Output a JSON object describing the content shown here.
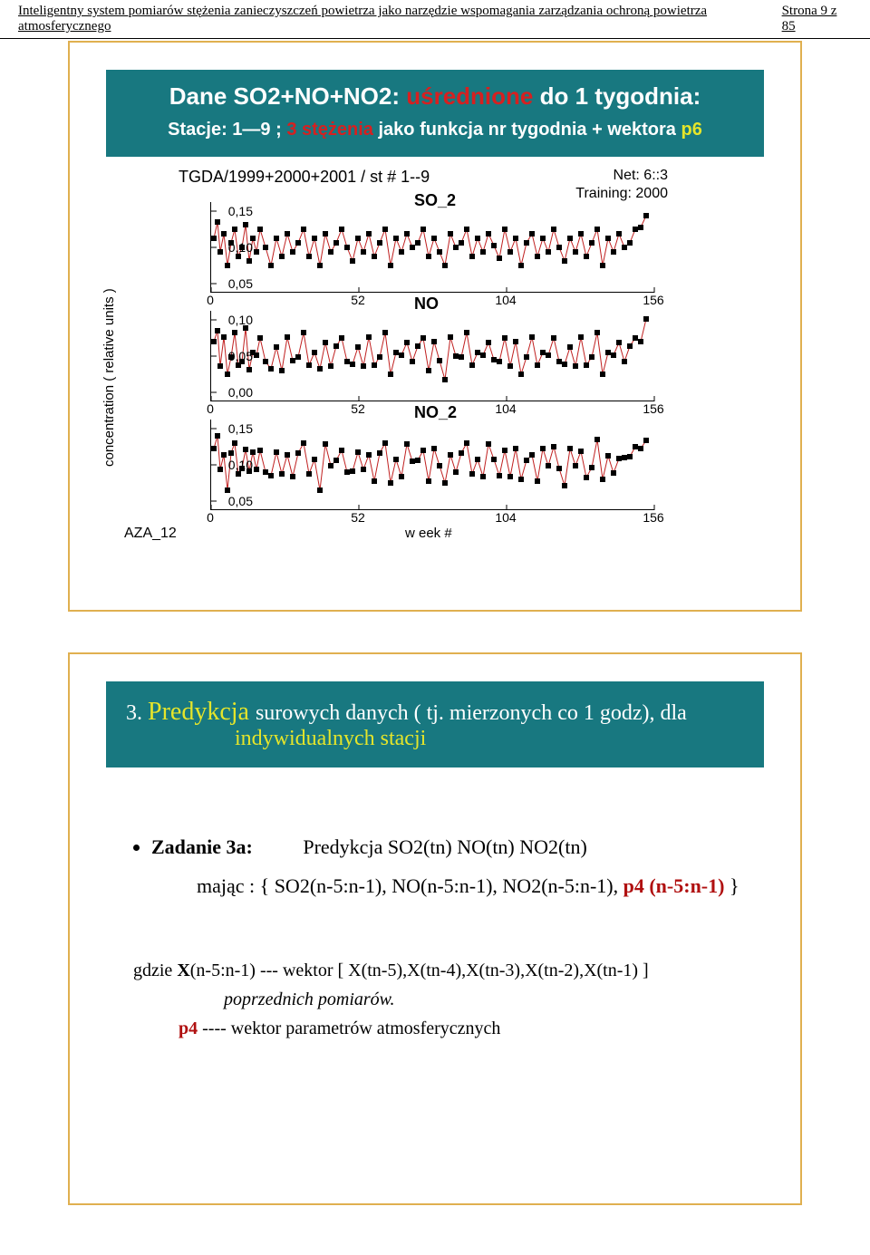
{
  "header": {
    "title": "Inteligentny system pomiarów stężenia zanieczyszczeń powietrza jako narzędzie wspomagania zarządzania ochroną powietrza atmosferycznego",
    "page": "Strona 9 z 85"
  },
  "slide1": {
    "title_white": "Dane SO2+NO+NO2: ",
    "title_red": "uśrednione",
    "title_white2": " do 1 tygodnia:",
    "sub_white1": "Stacje: 1—9  ; ",
    "sub_red": "3 stężenia ",
    "sub_white2": " jako funkcja nr tygodnia + wektora ",
    "sub_yel": "p6",
    "chart_title": "TGDA/1999+2000+2001 / st # 1--9",
    "net": "Net: 6::3",
    "train": "Training: 2000",
    "ylabel": "concentration ( relative units )",
    "xlabel": "w eek #",
    "bottom_left": "AZA_12",
    "panels": [
      {
        "label": "SO_2",
        "yticks": [
          "0,15",
          "0,10",
          "0,05"
        ],
        "xticks": [
          "0",
          "52",
          "104",
          "156"
        ]
      },
      {
        "label": "NO",
        "yticks": [
          "0,10",
          "0,05",
          "0,00"
        ],
        "xticks": [
          "0",
          "52",
          "104",
          "156"
        ]
      },
      {
        "label": "NO_2",
        "yticks": [
          "0,15",
          "0,10",
          "0,05"
        ],
        "xticks": [
          "0",
          "52",
          "104",
          "156"
        ]
      }
    ],
    "scatter_seed": [
      [
        3,
        40
      ],
      [
        7,
        22
      ],
      [
        10,
        55
      ],
      [
        14,
        35
      ],
      [
        18,
        70
      ],
      [
        22,
        45
      ],
      [
        26,
        30
      ],
      [
        30,
        60
      ],
      [
        34,
        50
      ],
      [
        38,
        25
      ],
      [
        42,
        65
      ],
      [
        46,
        40
      ],
      [
        50,
        55
      ],
      [
        54,
        30
      ],
      [
        60,
        50
      ],
      [
        66,
        70
      ],
      [
        72,
        40
      ],
      [
        78,
        60
      ],
      [
        84,
        35
      ],
      [
        90,
        55
      ],
      [
        96,
        45
      ],
      [
        102,
        30
      ],
      [
        108,
        60
      ],
      [
        114,
        40
      ],
      [
        120,
        70
      ],
      [
        126,
        35
      ],
      [
        132,
        55
      ],
      [
        138,
        45
      ],
      [
        144,
        30
      ],
      [
        150,
        50
      ],
      [
        156,
        65
      ],
      [
        162,
        40
      ],
      [
        168,
        55
      ],
      [
        174,
        35
      ],
      [
        180,
        60
      ],
      [
        186,
        45
      ],
      [
        192,
        30
      ],
      [
        198,
        70
      ],
      [
        204,
        40
      ],
      [
        210,
        55
      ],
      [
        216,
        35
      ],
      [
        222,
        50
      ],
      [
        228,
        45
      ],
      [
        234,
        30
      ],
      [
        240,
        60
      ],
      [
        246,
        40
      ],
      [
        252,
        55
      ],
      [
        258,
        70
      ],
      [
        264,
        35
      ],
      [
        270,
        50
      ],
      [
        276,
        45
      ],
      [
        282,
        30
      ],
      [
        288,
        60
      ],
      [
        294,
        40
      ],
      [
        300,
        55
      ],
      [
        306,
        35
      ],
      [
        312,
        48
      ],
      [
        318,
        62
      ],
      [
        324,
        30
      ],
      [
        330,
        55
      ],
      [
        336,
        40
      ],
      [
        342,
        70
      ],
      [
        348,
        45
      ],
      [
        354,
        35
      ],
      [
        360,
        60
      ],
      [
        366,
        40
      ],
      [
        372,
        55
      ],
      [
        378,
        30
      ],
      [
        384,
        50
      ],
      [
        390,
        65
      ],
      [
        396,
        40
      ],
      [
        402,
        55
      ],
      [
        408,
        35
      ],
      [
        414,
        60
      ],
      [
        420,
        45
      ],
      [
        426,
        30
      ],
      [
        432,
        70
      ],
      [
        438,
        40
      ],
      [
        444,
        55
      ],
      [
        450,
        35
      ],
      [
        456,
        50
      ],
      [
        462,
        45
      ],
      [
        468,
        30
      ],
      [
        474,
        28
      ],
      [
        480,
        15
      ]
    ],
    "colors": {
      "marker": "#000000",
      "line": "#c02020",
      "axis": "#000000"
    }
  },
  "slide2": {
    "num": "3. ",
    "pred": "Predykcja ",
    "rest": "surowych danych ( tj. mierzonych co  1 godz),   dla",
    "sub2": "indywidualnych stacji",
    "task_label": "Zadanie  3a:",
    "task_text": "Predykcja  SO2(tn) NO(tn) NO2(tn)",
    "task_line2a": "mając : { SO2(n-5:n-1), NO(n-5:n-1), NO2(n-5:n-1), ",
    "task_line2_red": "p4 (n-5:n-1)",
    "task_line2b": " }",
    "footer1a": "gdzie  ",
    "footer1b": "X",
    "footer1c": "(n-5:n-1)  ---  wektor [ X(tn-5),X(tn-4),X(tn-3),X(tn-2),X(tn-1) ]",
    "footer2": "poprzednich pomiarów.",
    "footer3a": "p4",
    "footer3b": " ---- wektor parametrów  atmosferycznych"
  }
}
